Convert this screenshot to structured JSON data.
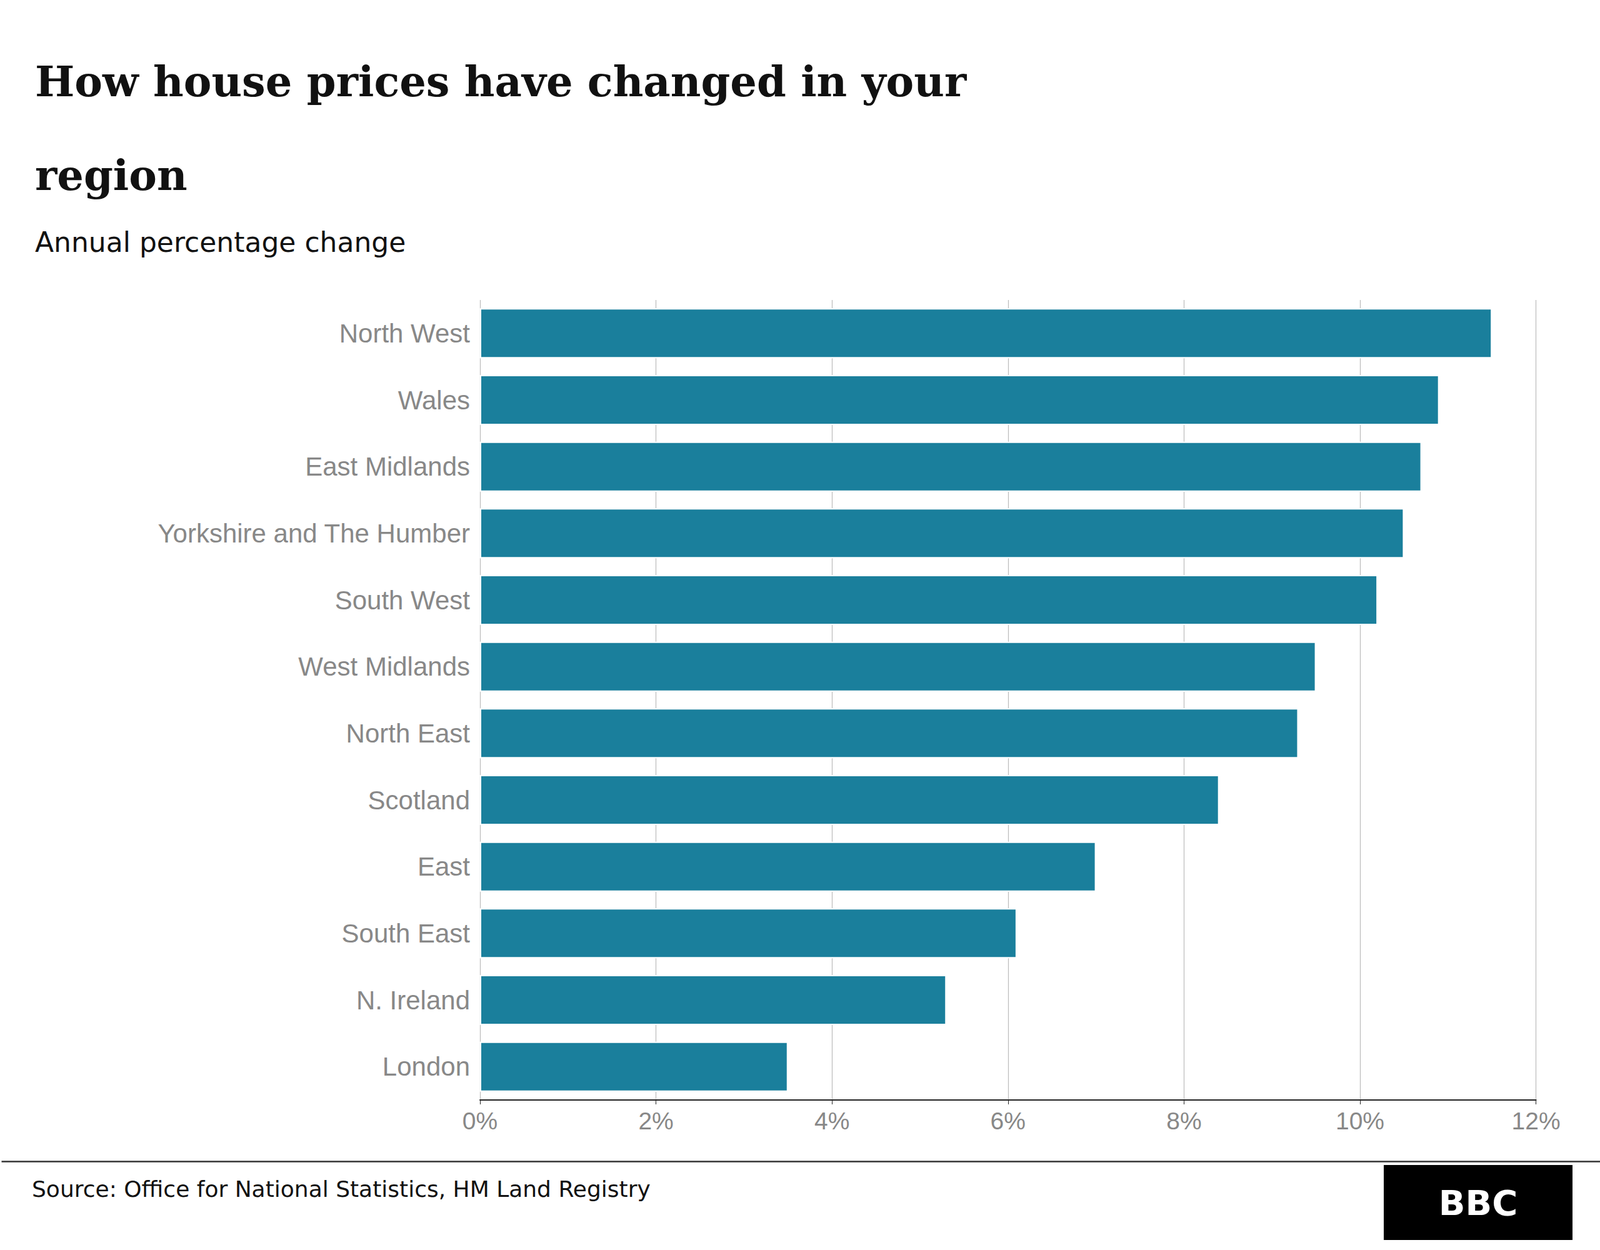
{
  "chart_data": {
    "type": "bar",
    "orientation": "horizontal",
    "title": "How house prices have changed in your\nregion",
    "subtitle": "Annual percentage change",
    "source": "Source: Office for National Statistics, HM Land Registry",
    "annotations": [
      "BBC"
    ],
    "categories": [
      "North West",
      "Wales",
      "East Midlands",
      "Yorkshire and The Humber",
      "South West",
      "West Midlands",
      "North East",
      "Scotland",
      "East",
      "South East",
      "N. Ireland",
      "London"
    ],
    "values": [
      11.5,
      10.9,
      10.7,
      10.5,
      10.2,
      9.5,
      9.3,
      8.4,
      7.0,
      6.1,
      5.3,
      3.5
    ],
    "color": "#1a7f9c",
    "xlim": [
      0,
      12
    ],
    "xticks": [
      {
        "value": 0,
        "label": "0%"
      },
      {
        "value": 2,
        "label": "2%"
      },
      {
        "value": 4,
        "label": "4%"
      },
      {
        "value": 6,
        "label": "6%"
      },
      {
        "value": 8,
        "label": "8%"
      },
      {
        "value": 10,
        "label": "10%"
      },
      {
        "value": 12,
        "label": "12%"
      }
    ],
    "grid": true
  }
}
